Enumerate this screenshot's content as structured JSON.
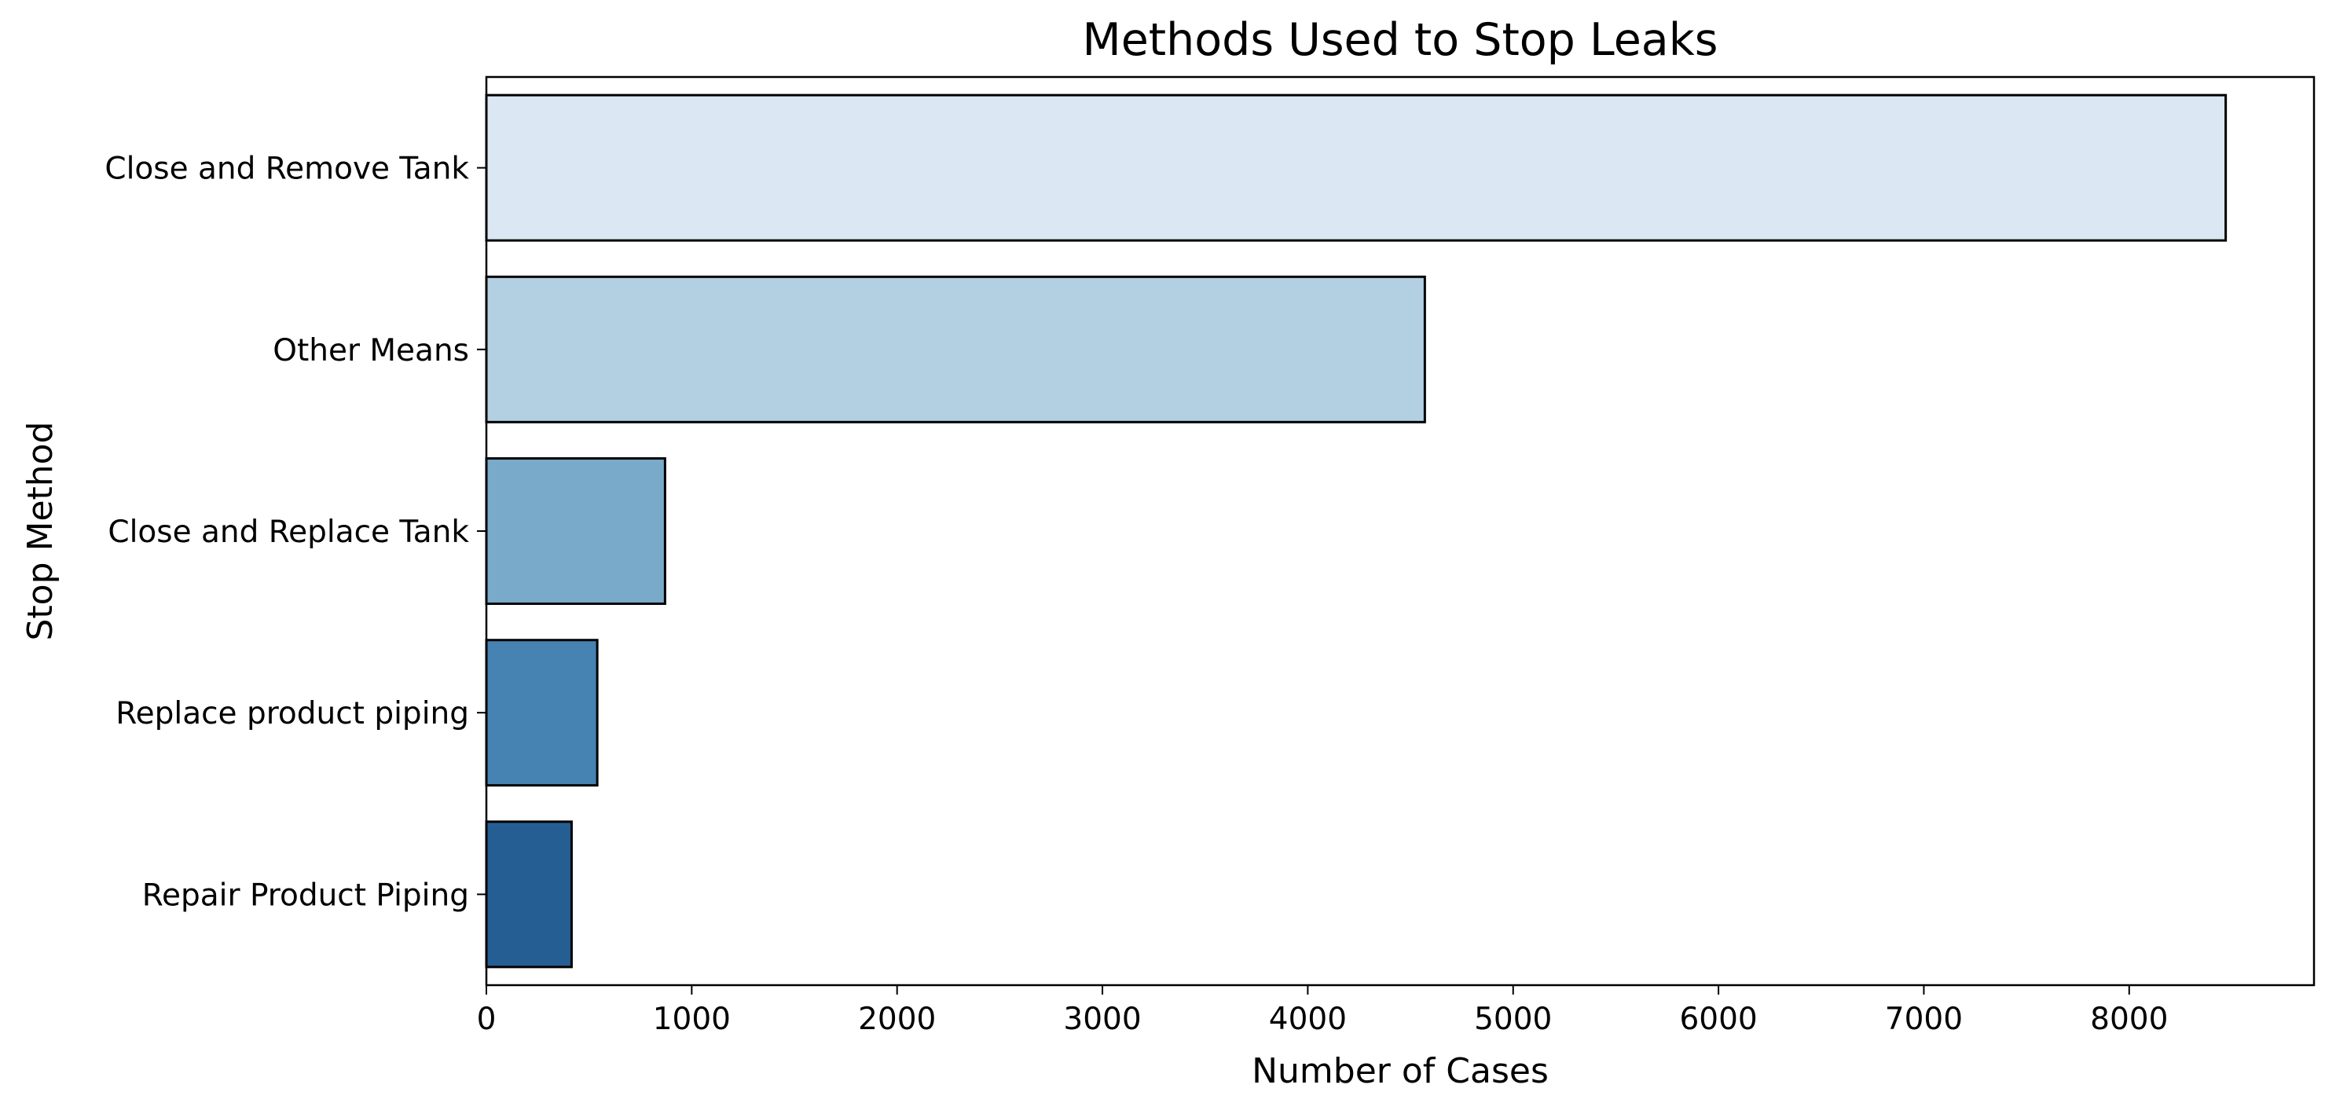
{
  "chart_data": {
    "type": "bar",
    "orientation": "horizontal",
    "title": "Methods Used to Stop Leaks",
    "xlabel": "Number of Cases",
    "ylabel": "Stop Method",
    "categories": [
      "Close and Remove Tank",
      "Other Means",
      "Close and Replace Tank",
      "Replace product piping",
      "Repair Product Piping"
    ],
    "values": [
      8470,
      4570,
      870,
      540,
      415
    ],
    "colors": [
      "#dbe7f2",
      "#b3cfe2",
      "#79aac9",
      "#4682b2",
      "#255e93"
    ],
    "edge_color": "#000000",
    "xlim": [
      0,
      8900
    ],
    "xticks": [
      0,
      1000,
      2000,
      3000,
      4000,
      5000,
      6000,
      7000,
      8000
    ],
    "grid": false,
    "legend": "none"
  }
}
